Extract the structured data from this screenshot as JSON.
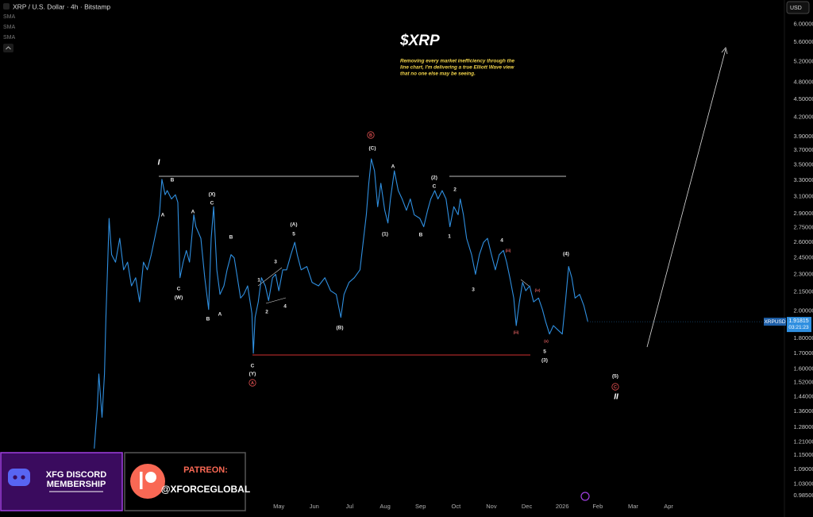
{
  "header": {
    "symbol": "XRP / U.S. Dollar · 4h · Bitstamp",
    "indicators": [
      "SMA",
      "SMA",
      "SMA"
    ],
    "currency": "USD"
  },
  "chart_data": {
    "type": "line",
    "title": "$XRP",
    "subtitle": [
      "Removing every market inefficiency through the",
      "line chart, I'm delivering a true Elliott Wave view",
      "that no one else may be seeing."
    ],
    "x": [
      -0.21,
      -0.12,
      -0.08,
      0.01,
      0.08,
      0.12,
      0.17,
      0.21,
      0.28,
      0.39,
      0.51,
      0.62,
      0.73,
      0.84,
      0.96,
      1.07,
      1.18,
      1.29,
      1.4,
      1.54,
      1.63,
      1.7,
      1.79,
      1.85,
      1.97,
      2.08,
      2.15,
      2.21,
      2.3,
      2.39,
      2.48,
      2.6,
      2.66,
      2.8,
      2.91,
      3.02,
      3.09,
      3.16,
      3.25,
      3.34,
      3.45,
      3.54,
      3.65,
      3.74,
      3.83,
      3.92,
      4.01,
      4.12,
      4.24,
      4.28,
      4.33,
      4.42,
      4.51,
      4.62,
      4.71,
      4.82,
      4.91,
      5.0,
      5.11,
      5.22,
      5.34,
      5.45,
      5.52,
      5.63,
      5.79,
      5.94,
      6.12,
      6.3,
      6.46,
      6.62,
      6.75,
      6.84,
      6.98,
      7.13,
      7.29,
      7.38,
      7.47,
      7.54,
      7.61,
      7.7,
      7.79,
      7.88,
      7.99,
      8.08,
      8.15,
      8.26,
      8.37,
      8.48,
      8.6,
      8.71,
      8.82,
      8.98,
      9.09,
      9.2,
      9.29,
      9.4,
      9.49,
      9.61,
      9.72,
      9.83,
      9.94,
      10.06,
      10.12,
      10.21,
      10.3,
      10.44,
      10.55,
      10.66,
      10.78,
      10.89,
      11.0,
      11.11,
      11.22,
      11.34,
      11.43,
      11.52,
      11.63,
      11.7,
      11.79,
      11.88,
      11.97,
      12.08,
      12.19,
      12.33,
      12.44,
      12.53,
      12.64,
      12.75,
      12.87,
      13.0,
      13.09,
      13.18,
      13.27,
      13.36,
      13.49,
      13.61,
      13.72
    ],
    "series": [
      {
        "name": "XRPUSD",
        "color": "#2f8fe0",
        "values": [
          1.18,
          1.39,
          1.57,
          1.33,
          1.57,
          1.95,
          2.41,
          2.85,
          2.48,
          2.41,
          2.64,
          2.34,
          2.41,
          2.2,
          2.27,
          2.07,
          2.41,
          2.34,
          2.48,
          2.72,
          2.89,
          3.31,
          3.12,
          3.17,
          3.07,
          3.12,
          3.03,
          2.27,
          2.41,
          2.52,
          2.41,
          2.89,
          2.76,
          2.64,
          2.27,
          2.01,
          2.64,
          2.98,
          2.34,
          2.13,
          2.2,
          2.34,
          2.48,
          2.45,
          2.27,
          2.1,
          2.13,
          2.2,
          1.98,
          1.7,
          1.95,
          2.07,
          2.27,
          2.2,
          2.08,
          2.27,
          2.3,
          2.16,
          2.34,
          2.34,
          2.48,
          2.6,
          2.48,
          2.34,
          2.37,
          2.23,
          2.2,
          2.27,
          2.16,
          2.13,
          1.95,
          2.13,
          2.23,
          2.27,
          2.34,
          2.6,
          2.89,
          3.26,
          3.58,
          3.42,
          2.98,
          3.26,
          2.94,
          2.8,
          3.07,
          3.42,
          3.17,
          3.07,
          2.94,
          3.07,
          2.89,
          2.85,
          2.76,
          2.94,
          3.07,
          3.17,
          3.07,
          3.17,
          3.07,
          2.76,
          2.98,
          2.89,
          3.07,
          2.89,
          2.64,
          2.48,
          2.3,
          2.48,
          2.6,
          2.64,
          2.48,
          2.34,
          2.48,
          2.52,
          2.41,
          2.27,
          2.1,
          1.89,
          2.07,
          2.23,
          2.16,
          2.2,
          2.07,
          2.1,
          2.01,
          1.92,
          1.83,
          1.89,
          1.86,
          1.83,
          2.07,
          2.37,
          2.27,
          2.1,
          2.13,
          2.04,
          1.92
        ]
      }
    ],
    "xlim": [
      -2.87,
      19.27
    ],
    "xticks": [
      {
        "value": 5,
        "label": "May"
      },
      {
        "value": 6,
        "label": "Jun"
      },
      {
        "value": 7,
        "label": "Jul"
      },
      {
        "value": 8,
        "label": "Aug"
      },
      {
        "value": 9,
        "label": "Sep"
      },
      {
        "value": 10,
        "label": "Oct"
      },
      {
        "value": 11,
        "label": "Nov"
      },
      {
        "value": 12,
        "label": "Dec"
      },
      {
        "value": 13,
        "label": "2026"
      },
      {
        "value": 14,
        "label": "Feb"
      },
      {
        "value": 15,
        "label": "Mar"
      },
      {
        "value": 16,
        "label": "Apr"
      }
    ],
    "ylim": [
      0.93,
      6.58
    ],
    "log_y": true,
    "grid": false,
    "yticks": [
      {
        "value": 6,
        "label": "6.00000"
      },
      {
        "value": 5.6,
        "label": "5.60000"
      },
      {
        "value": 5.2,
        "label": "5.20000"
      },
      {
        "value": 4.8,
        "label": "4.80000"
      },
      {
        "value": 4.5,
        "label": "4.50000"
      },
      {
        "value": 4.2,
        "label": "4.20000"
      },
      {
        "value": 3.9,
        "label": "3.90000"
      },
      {
        "value": 3.7,
        "label": "3.70000"
      },
      {
        "value": 3.5,
        "label": "3.50000"
      },
      {
        "value": 3.3,
        "label": "3.30000"
      },
      {
        "value": 3.1,
        "label": "3.10000"
      },
      {
        "value": 2.9,
        "label": "2.90000"
      },
      {
        "value": 2.75,
        "label": "2.75000"
      },
      {
        "value": 2.6,
        "label": "2.60000"
      },
      {
        "value": 2.45,
        "label": "2.45000"
      },
      {
        "value": 2.3,
        "label": "2.30000"
      },
      {
        "value": 2.15,
        "label": "2.15000"
      },
      {
        "value": 2,
        "label": "2.00000"
      },
      {
        "value": 1.8,
        "label": "1.80000"
      },
      {
        "value": 1.7,
        "label": "1.70000"
      },
      {
        "value": 1.6,
        "label": "1.60000"
      },
      {
        "value": 1.52,
        "label": "1.52000"
      },
      {
        "value": 1.44,
        "label": "1.44000"
      },
      {
        "value": 1.36,
        "label": "1.36000"
      },
      {
        "value": 1.28,
        "label": "1.28000"
      },
      {
        "value": 1.21,
        "label": "1.21000"
      },
      {
        "value": 1.15,
        "label": "1.15000"
      },
      {
        "value": 1.09,
        "label": "1.09000"
      },
      {
        "value": 1.03,
        "label": "1.03000"
      },
      {
        "value": 0.985,
        "label": "0.98500"
      }
    ],
    "last_price": {
      "label": "XRPUSD",
      "value": 1.91815,
      "countdown": "03:21:23"
    },
    "annotations": [
      "I",
      "B",
      "A",
      "A",
      "(X)",
      "C",
      "C",
      "(W)",
      "B",
      "B",
      "A",
      "1",
      "3",
      "2",
      "4",
      "(A)",
      "5",
      "C",
      "(Y)",
      "A",
      "B",
      "(C)",
      "A",
      "(1)",
      "B",
      "(2)",
      "C",
      "2",
      "1",
      "3",
      "4",
      "(B)",
      "(4)",
      "5",
      "(3)",
      "(5)",
      "C",
      "II",
      "(iii)",
      "(iv)",
      "(iii)",
      "(v)"
    ]
  },
  "promos": {
    "discord": [
      "XFG DISCORD",
      "MEMBERSHIP"
    ],
    "patreon_title": "PATREON:",
    "patreon_handle": "@XFORCEGLOBAL"
  }
}
